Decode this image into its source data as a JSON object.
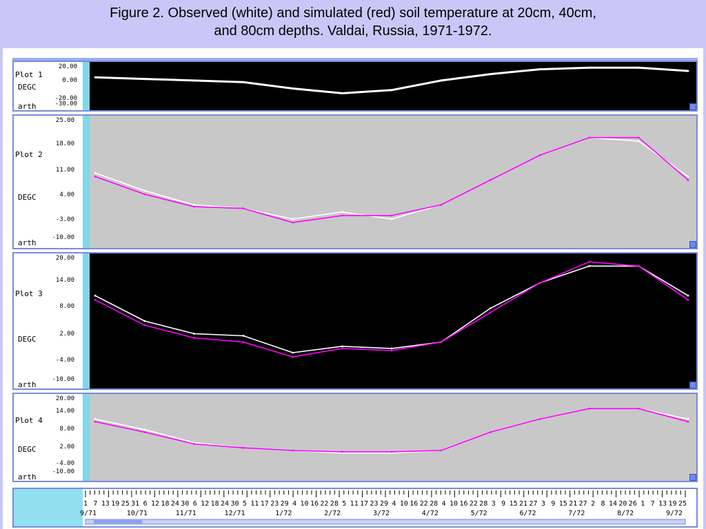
{
  "caption": {
    "line1": "Figure 2.  Observed (white) and simulated (red) soil temperature at 20cm, 40cm,",
    "line2": "and 80cm depths.  Valdai, Russia,  1971-1972."
  },
  "colors": {
    "observed": "#ffffff",
    "simulated": "#ff00ff",
    "background_light": "#c8c8c8",
    "background_dark": "#000000",
    "accent": "#80d8e8"
  },
  "panels": [
    {
      "label": "Plot 1",
      "unit": "DEGC",
      "arth": "arth",
      "bg": "dark",
      "ticks": [
        "20.00",
        "0.00",
        "-20.00",
        "-30.00"
      ]
    },
    {
      "label": "Plot 2",
      "unit": "DEGC",
      "arth": "arth",
      "bg": "light",
      "ticks": [
        "25.00",
        "18.00",
        "11.00",
        "4.00",
        "-3.00",
        "-10.00"
      ]
    },
    {
      "label": "Plot 3",
      "unit": "DEGC",
      "arth": "arth",
      "bg": "dark",
      "ticks": [
        "20.00",
        "14.00",
        "8.00",
        "2.00",
        "-4.00",
        "-10.00"
      ]
    },
    {
      "label": "Plot 4",
      "unit": "DEGC",
      "arth": "arth",
      "bg": "light",
      "ticks": [
        "20.00",
        "14.00",
        "8.00",
        "2.00",
        "-4.00",
        "-10.00"
      ]
    }
  ],
  "time_axis": {
    "days_line": "1 7 13 19 25 31 6 12 18 24 30 6 12 18 24 30 5 11 17 23 29 4 10 16 22 28 5 11 17 23 29 4 10 16 22 28 4 10 16 22 28 3 9 15 21 27 3 9 15 21 27 2 8 14 20 26 1 7 13 19 25",
    "months": [
      "9/71",
      "10/71",
      "11/71",
      "12/71",
      "1/72",
      "2/72",
      "3/72",
      "4/72",
      "5/72",
      "6/72",
      "7/72",
      "8/72",
      "9/72"
    ]
  },
  "chart_data": [
    {
      "type": "line",
      "title": "Plot 1",
      "ylabel": "DEGC",
      "ylim": [
        -30,
        20
      ],
      "x": [
        "9/71",
        "10/71",
        "11/71",
        "12/71",
        "1/72",
        "2/72",
        "3/72",
        "4/72",
        "5/72",
        "6/72",
        "7/72",
        "8/72",
        "9/72"
      ],
      "series": [
        {
          "name": "observed",
          "values": [
            6,
            4,
            2,
            0,
            -8,
            -14,
            -10,
            2,
            10,
            16,
            18,
            18,
            14
          ]
        }
      ]
    },
    {
      "type": "line",
      "title": "Plot 2",
      "ylabel": "DEGC",
      "ylim": [
        -10,
        25
      ],
      "x": [
        "9/71",
        "10/71",
        "11/71",
        "12/71",
        "1/72",
        "2/72",
        "3/72",
        "4/72",
        "5/72",
        "6/72",
        "7/72",
        "8/72",
        "9/72"
      ],
      "series": [
        {
          "name": "observed",
          "values": [
            10,
            5,
            1,
            0,
            -3,
            -1,
            -3,
            1,
            8,
            15,
            20,
            19,
            9
          ]
        },
        {
          "name": "simulated",
          "values": [
            9,
            4,
            0.5,
            0,
            -4,
            -2,
            -2,
            1,
            8,
            15,
            20,
            20,
            8
          ]
        }
      ]
    },
    {
      "type": "line",
      "title": "Plot 3",
      "ylabel": "DEGC",
      "ylim": [
        -10,
        20
      ],
      "x": [
        "9/71",
        "10/71",
        "11/71",
        "12/71",
        "1/72",
        "2/72",
        "3/72",
        "4/72",
        "5/72",
        "6/72",
        "7/72",
        "8/72",
        "9/72"
      ],
      "series": [
        {
          "name": "observed",
          "values": [
            11,
            5,
            2,
            1.5,
            -2.5,
            -1,
            -1.5,
            0,
            8,
            14,
            18,
            18,
            11
          ]
        },
        {
          "name": "simulated",
          "values": [
            10,
            4,
            1,
            0,
            -3.5,
            -1.5,
            -2,
            0,
            7,
            14,
            19,
            18,
            10
          ]
        }
      ]
    },
    {
      "type": "line",
      "title": "Plot 4",
      "ylabel": "DEGC",
      "ylim": [
        -10,
        20
      ],
      "x": [
        "9/71",
        "10/71",
        "11/71",
        "12/71",
        "1/72",
        "2/72",
        "3/72",
        "4/72",
        "5/72",
        "6/72",
        "7/72",
        "8/72",
        "9/72"
      ],
      "series": [
        {
          "name": "observed",
          "values": [
            12,
            8,
            3,
            1,
            0,
            -1,
            -1,
            0,
            7,
            12,
            16,
            16,
            12
          ]
        },
        {
          "name": "simulated",
          "values": [
            11,
            7,
            2.5,
            1,
            0,
            -0.5,
            -0.5,
            0,
            7,
            12,
            16,
            16,
            11
          ]
        }
      ]
    }
  ]
}
